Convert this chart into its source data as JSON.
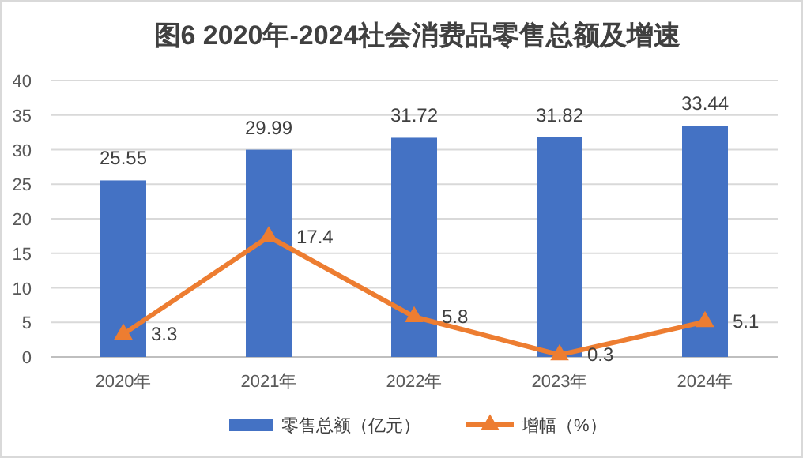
{
  "chart_data": {
    "type": "bar",
    "title": "图6  2020年-2024社会消费品零售总额及增速",
    "categories": [
      "2020年",
      "2021年",
      "2022年",
      "2023年",
      "2024年"
    ],
    "series": [
      {
        "name": "零售总额（亿元）",
        "color": "#4472c4",
        "values": [
          25.55,
          29.99,
          31.72,
          31.82,
          33.44
        ]
      },
      {
        "name": "增幅（%）",
        "type": "line",
        "color": "#ed7d31",
        "marker": "triangle",
        "values": [
          3.3,
          17.4,
          5.8,
          0.3,
          5.1
        ]
      }
    ],
    "ylim": [
      0,
      40
    ],
    "yticks": [
      0,
      5,
      10,
      15,
      20,
      25,
      30,
      35,
      40
    ],
    "grid": "y",
    "legend": "bottom",
    "data_labels": true
  }
}
